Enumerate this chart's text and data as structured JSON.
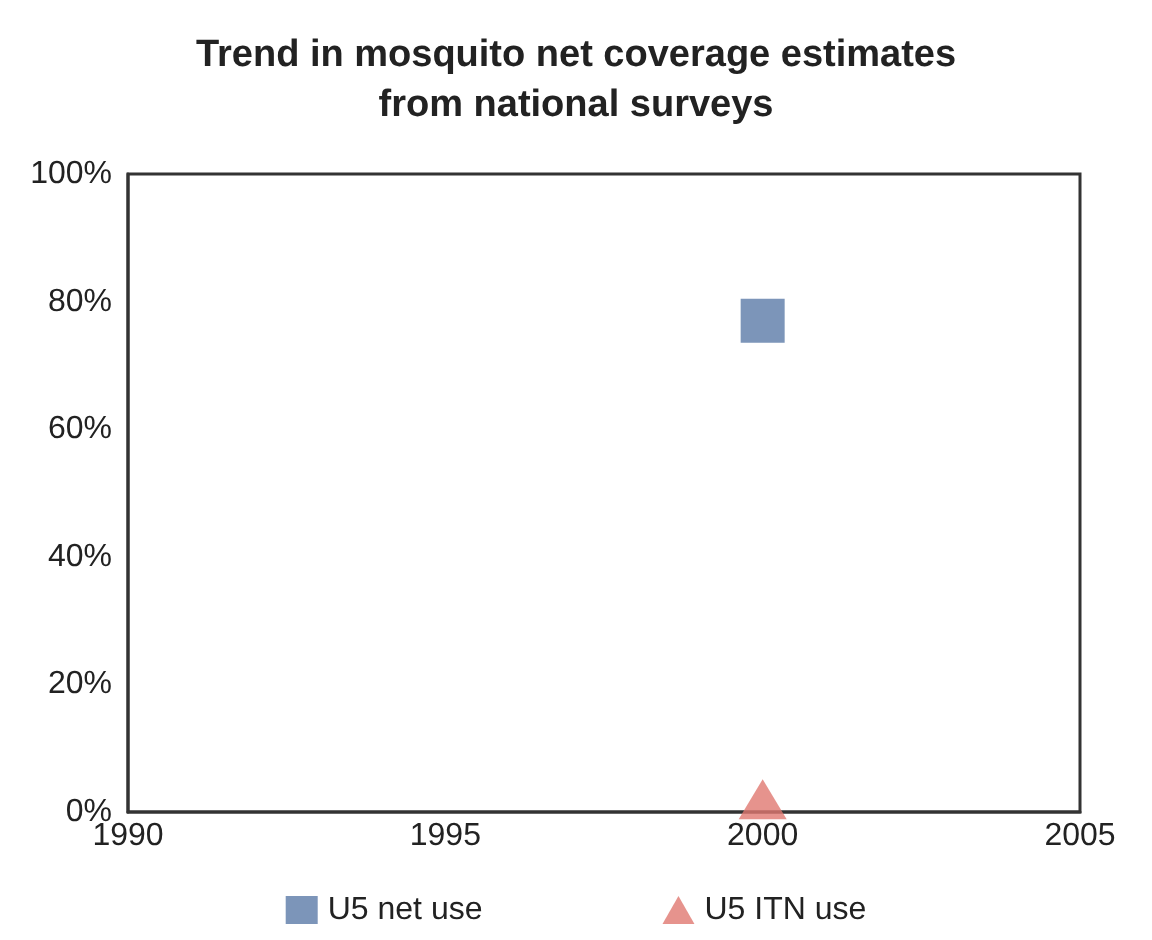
{
  "chart_data": {
    "type": "scatter",
    "title": "Trend in mosquito net coverage estimates\nfrom national surveys",
    "x": [
      2000
    ],
    "series": [
      {
        "name": "U5 net use",
        "color": "#5b7ba8",
        "marker": "square",
        "values": [
          77
        ]
      },
      {
        "name": "U5 ITN use",
        "color": "#e07870",
        "marker": "triangle",
        "values": [
          2
        ]
      }
    ],
    "xlim": [
      1990,
      2005
    ],
    "xticks": [
      1990,
      1995,
      2000,
      2005
    ],
    "ylim": [
      0,
      100
    ],
    "yticks": [
      {
        "value": 0,
        "label": "0%"
      },
      {
        "value": 20,
        "label": "20%"
      },
      {
        "value": 40,
        "label": "40%"
      },
      {
        "value": 60,
        "label": "60%"
      },
      {
        "value": 80,
        "label": "80%"
      },
      {
        "value": 100,
        "label": "100%"
      }
    ],
    "grid": false,
    "legend": "bottom"
  }
}
